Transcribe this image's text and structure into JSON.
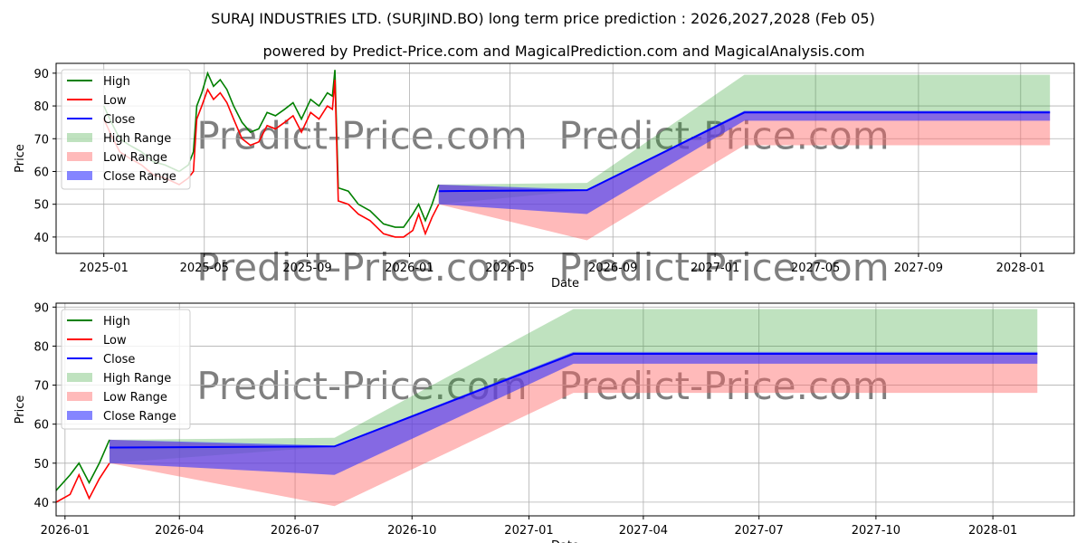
{
  "title": "SURAJ INDUSTRIES LTD. (SURJIND.BO) long term price prediction : 2026,2027,2028 (Feb 05)",
  "subtitle": "powered by Predict-Price.com and MagicalPrediction.com and MagicalAnalysis.com",
  "watermark": "Predict-Price.com",
  "colors": {
    "high": "#008000",
    "low": "#ff0000",
    "close": "#0000ff",
    "high_range": "#2ca02c",
    "low_range": "#ff6666",
    "close_range": "#3333ff"
  },
  "chart_data": [
    {
      "type": "line",
      "xlabel": "Date",
      "ylabel": "Price",
      "ylim": [
        35,
        93
      ],
      "xlim": [
        "2024-11-05",
        "2028-03-05"
      ],
      "yticks": [
        40,
        50,
        60,
        70,
        80,
        90
      ],
      "xticks": [
        "2025-01",
        "2025-05",
        "2025-09",
        "2026-01",
        "2026-05",
        "2026-09",
        "2027-01",
        "2027-05",
        "2027-09",
        "2028-01"
      ],
      "legend": [
        "High",
        "Low",
        "Close",
        "High Range",
        "Low Range",
        "Close Range"
      ],
      "legend_position": "upper-left",
      "grid": true
    },
    {
      "type": "line",
      "xlabel": "Date",
      "ylabel": "Price",
      "ylim": [
        36.5,
        91
      ],
      "xlim": [
        "2025-12-25",
        "2028-03-05"
      ],
      "yticks": [
        40,
        50,
        60,
        70,
        80,
        90
      ],
      "xticks": [
        "2026-01",
        "2026-04",
        "2026-07",
        "2026-10",
        "2027-01",
        "2027-04",
        "2027-07",
        "2027-10",
        "2028-01"
      ],
      "legend": [
        "High",
        "Low",
        "Close",
        "High Range",
        "Low Range",
        "Close Range"
      ],
      "legend_position": "upper-left",
      "grid": true
    }
  ],
  "history": {
    "dates": [
      "2025-01-01",
      "2025-01-10",
      "2025-01-20",
      "2025-02-01",
      "2025-02-15",
      "2025-03-01",
      "2025-03-15",
      "2025-04-01",
      "2025-04-12",
      "2025-04-18",
      "2025-04-22",
      "2025-04-28",
      "2025-05-05",
      "2025-05-12",
      "2025-05-20",
      "2025-05-28",
      "2025-06-05",
      "2025-06-15",
      "2025-06-25",
      "2025-07-05",
      "2025-07-15",
      "2025-07-25",
      "2025-08-05",
      "2025-08-15",
      "2025-08-25",
      "2025-09-05",
      "2025-09-15",
      "2025-09-25",
      "2025-10-01",
      "2025-10-04",
      "2025-10-08",
      "2025-10-20",
      "2025-11-01",
      "2025-11-15",
      "2025-12-01",
      "2025-12-15",
      "2025-12-25",
      "2026-01-05",
      "2026-01-12",
      "2026-01-20",
      "2026-01-28",
      "2026-02-05"
    ],
    "high": [
      80,
      75,
      70,
      68,
      66,
      63,
      62,
      60,
      62,
      66,
      80,
      84,
      90,
      86,
      88,
      85,
      80,
      75,
      72,
      73,
      78,
      77,
      79,
      81,
      76,
      82,
      80,
      84,
      83,
      91,
      55,
      54,
      50,
      48,
      44,
      43,
      43,
      47,
      50,
      45,
      50,
      56
    ],
    "low": [
      76,
      71,
      66,
      64,
      62,
      59,
      58,
      56,
      58,
      60,
      76,
      80,
      85,
      82,
      84,
      81,
      76,
      70,
      68,
      69,
      74,
      73,
      75,
      77,
      72,
      78,
      76,
      80,
      79,
      88,
      51,
      50,
      47,
      45,
      41,
      40,
      40,
      42,
      47,
      41,
      46,
      50
    ]
  },
  "forecast": {
    "dates": [
      "2026-02-05",
      "2026-08-01",
      "2027-02-05",
      "2028-02-05"
    ],
    "close": [
      54,
      54.3,
      78,
      78
    ],
    "high_range": [
      [
        50,
        56
      ],
      [
        54.3,
        56.5
      ],
      [
        78,
        89.5
      ],
      [
        78,
        89.5
      ]
    ],
    "low_range": [
      [
        50,
        56
      ],
      [
        39,
        54
      ],
      [
        68,
        78
      ],
      [
        68,
        78
      ]
    ],
    "close_range": [
      [
        50,
        56
      ],
      [
        47,
        54.5
      ],
      [
        75.5,
        78.5
      ],
      [
        75.5,
        78.5
      ]
    ]
  }
}
